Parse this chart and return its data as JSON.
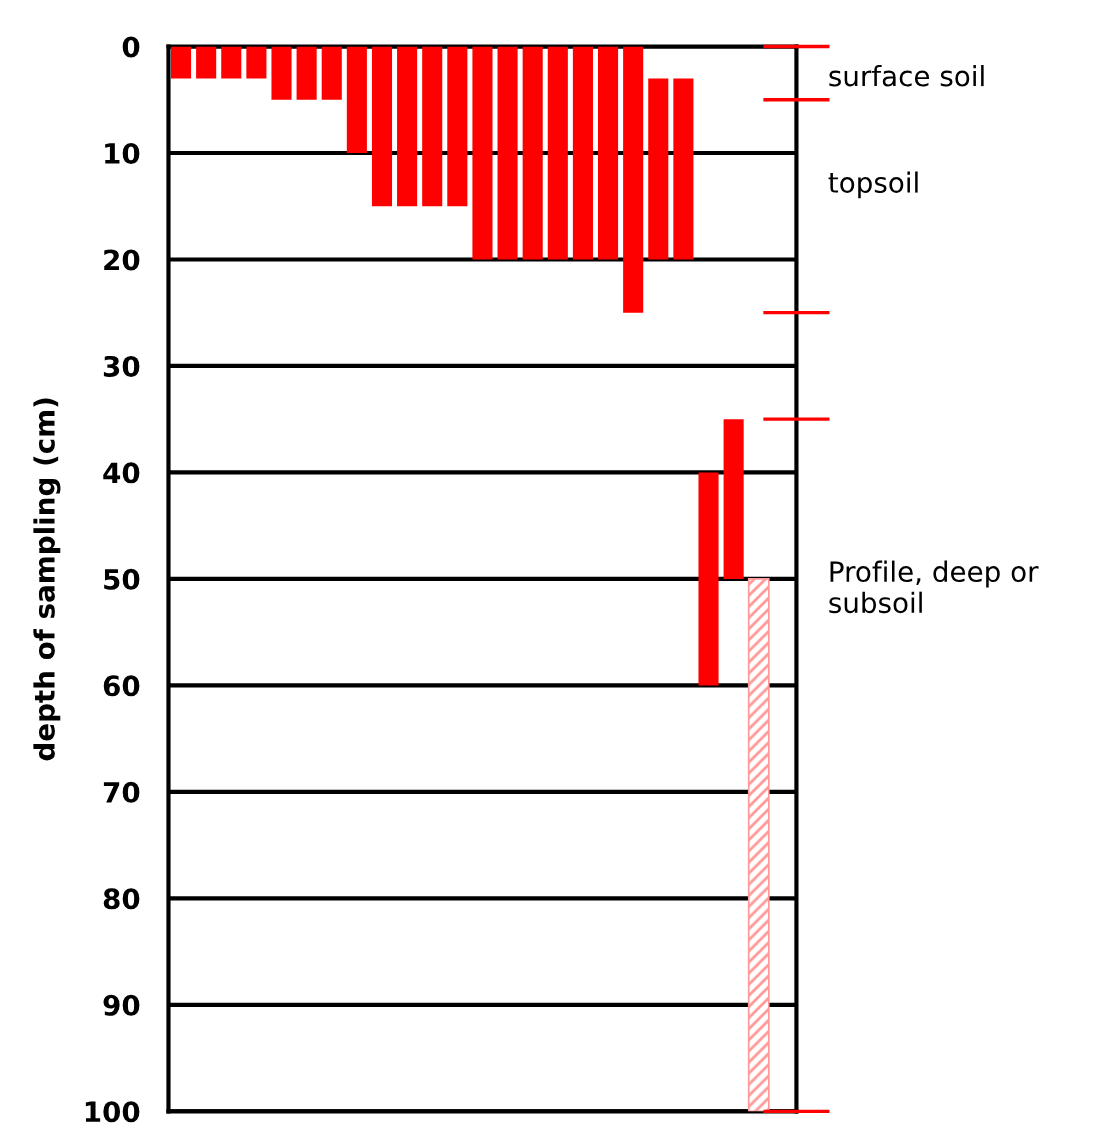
{
  "chart_data": {
    "type": "bar",
    "ylabel": "depth of sampling (cm)",
    "categories": [
      null,
      null,
      null,
      null,
      null,
      null,
      null,
      null,
      null,
      null,
      null,
      null,
      null,
      null,
      null,
      null,
      null,
      null,
      null,
      null,
      null,
      null,
      null,
      null,
      null
    ],
    "series": [
      {
        "color": "#ff0000",
        "values": [
          3,
          3,
          3,
          3,
          5,
          5,
          5,
          10,
          15,
          15,
          15,
          15,
          20,
          20,
          20,
          20,
          20,
          20,
          25,
          17,
          17,
          20,
          15,
          null,
          null
        ],
        "base": [
          0,
          0,
          0,
          0,
          0,
          0,
          0,
          0,
          0,
          0,
          0,
          0,
          0,
          0,
          0,
          0,
          0,
          0,
          0,
          3,
          3,
          40,
          35,
          null,
          null
        ]
      },
      {
        "color": "#ff9999",
        "values": [
          null,
          null,
          null,
          null,
          null,
          null,
          null,
          null,
          null,
          null,
          null,
          null,
          null,
          null,
          null,
          null,
          null,
          null,
          null,
          null,
          null,
          null,
          null,
          50,
          null
        ],
        "base": [
          null,
          null,
          null,
          null,
          null,
          null,
          null,
          null,
          null,
          null,
          null,
          null,
          null,
          null,
          null,
          null,
          null,
          null,
          null,
          null,
          null,
          null,
          null,
          50,
          null
        ]
      }
    ],
    "ylim": [
      100,
      0
    ],
    "yticks": [
      0,
      10,
      20,
      30,
      40,
      50,
      60,
      70,
      80,
      90,
      100
    ],
    "grid": "y",
    "annotations": [
      "surface soil",
      "topsoil",
      "Profile, deep or subsoil"
    ]
  }
}
